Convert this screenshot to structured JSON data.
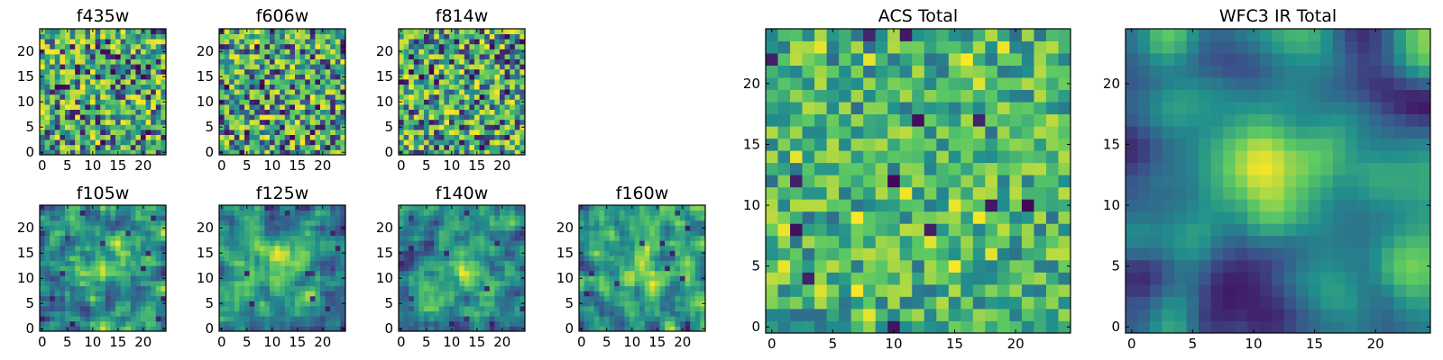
{
  "figure": {
    "colormap": "viridis",
    "colormap_stops": [
      "#440154",
      "#3b528b",
      "#21908d",
      "#5dc963",
      "#fde725"
    ],
    "background": "#ffffff"
  },
  "chart_data": [
    {
      "id": "f435w",
      "type": "heatmap",
      "title": "f435w",
      "grid_size": 25,
      "xlim": [
        -0.5,
        24.5
      ],
      "ylim": [
        -0.5,
        24.5
      ],
      "xticks": [
        0,
        5,
        10,
        15,
        20
      ],
      "yticks": [
        0,
        5,
        10,
        15,
        20
      ],
      "texture": "noisy",
      "seed": 11,
      "color_range": [
        0.0,
        1.0
      ],
      "blobs": []
    },
    {
      "id": "f606w",
      "type": "heatmap",
      "title": "f606w",
      "grid_size": 25,
      "xlim": [
        -0.5,
        24.5
      ],
      "ylim": [
        -0.5,
        24.5
      ],
      "xticks": [
        0,
        5,
        10,
        15,
        20
      ],
      "yticks": [
        0,
        5,
        10,
        15,
        20
      ],
      "texture": "noisy",
      "seed": 23,
      "color_range": [
        0.0,
        1.0
      ],
      "blobs": []
    },
    {
      "id": "f814w",
      "type": "heatmap",
      "title": "f814w",
      "grid_size": 25,
      "xlim": [
        -0.5,
        24.5
      ],
      "ylim": [
        -0.5,
        24.5
      ],
      "xticks": [
        0,
        5,
        10,
        15,
        20
      ],
      "yticks": [
        0,
        5,
        10,
        15,
        20
      ],
      "texture": "noisy",
      "seed": 37,
      "color_range": [
        0.0,
        1.0
      ],
      "blobs": []
    },
    {
      "id": "f105w",
      "type": "heatmap",
      "title": "f105w",
      "grid_size": 25,
      "xlim": [
        -0.5,
        24.5
      ],
      "ylim": [
        -0.5,
        24.5
      ],
      "xticks": [
        0,
        5,
        10,
        15,
        20
      ],
      "yticks": [
        0,
        5,
        10,
        15,
        20
      ],
      "texture": "smooth",
      "seed": 41,
      "color_range": [
        0.0,
        1.0
      ],
      "blobs": [
        {
          "x": 13,
          "y": 13,
          "sigma": 4,
          "amp": 0.35
        }
      ]
    },
    {
      "id": "f125w",
      "type": "heatmap",
      "title": "f125w",
      "grid_size": 25,
      "xlim": [
        -0.5,
        24.5
      ],
      "ylim": [
        -0.5,
        24.5
      ],
      "xticks": [
        0,
        5,
        10,
        15,
        20
      ],
      "yticks": [
        0,
        5,
        10,
        15,
        20
      ],
      "texture": "smooth",
      "seed": 53,
      "color_range": [
        0.0,
        1.0
      ],
      "blobs": [
        {
          "x": 12,
          "y": 13,
          "sigma": 4,
          "amp": 0.4
        }
      ]
    },
    {
      "id": "f140w",
      "type": "heatmap",
      "title": "f140w",
      "grid_size": 25,
      "xlim": [
        -0.5,
        24.5
      ],
      "ylim": [
        -0.5,
        24.5
      ],
      "xticks": [
        0,
        5,
        10,
        15,
        20
      ],
      "yticks": [
        0,
        5,
        10,
        15,
        20
      ],
      "texture": "smooth",
      "seed": 67,
      "color_range": [
        0.0,
        1.0
      ],
      "blobs": [
        {
          "x": 12,
          "y": 12,
          "sigma": 4,
          "amp": 0.35
        }
      ]
    },
    {
      "id": "f160w",
      "type": "heatmap",
      "title": "f160w",
      "grid_size": 25,
      "xlim": [
        -0.5,
        24.5
      ],
      "ylim": [
        -0.5,
        24.5
      ],
      "xticks": [
        0,
        5,
        10,
        15,
        20
      ],
      "yticks": [
        0,
        5,
        10,
        15,
        20
      ],
      "texture": "smooth",
      "seed": 79,
      "color_range": [
        0.0,
        1.0
      ],
      "blobs": [
        {
          "x": 12,
          "y": 12,
          "sigma": 4,
          "amp": 0.35
        }
      ]
    },
    {
      "id": "acs-total",
      "type": "heatmap",
      "title": "ACS Total",
      "grid_size": 25,
      "xlim": [
        -0.5,
        24.5
      ],
      "ylim": [
        -0.5,
        24.5
      ],
      "xticks": [
        0,
        5,
        10,
        15,
        20
      ],
      "yticks": [
        0,
        5,
        10,
        15,
        20
      ],
      "texture": "noisy-mid",
      "seed": 97,
      "color_range": [
        0.0,
        1.0
      ],
      "blobs": []
    },
    {
      "id": "wfc3-ir-total",
      "type": "heatmap",
      "title": "WFC3 IR Total",
      "grid_size": 25,
      "xlim": [
        -0.5,
        24.5
      ],
      "ylim": [
        -0.5,
        24.5
      ],
      "xticks": [
        0,
        5,
        10,
        15,
        20
      ],
      "yticks": [
        0,
        5,
        10,
        15,
        20
      ],
      "texture": "smooth-strong",
      "seed": 113,
      "color_range": [
        0.0,
        1.0
      ],
      "blobs": [
        {
          "x": 11,
          "y": 13,
          "sigma": 3.2,
          "amp": 0.6
        },
        {
          "x": 22,
          "y": 3,
          "sigma": 2.5,
          "amp": 0.35
        },
        {
          "x": 9,
          "y": 2,
          "sigma": 2.5,
          "amp": -0.5
        },
        {
          "x": 1,
          "y": 3,
          "sigma": 2.0,
          "amp": -0.35
        },
        {
          "x": 20,
          "y": 20,
          "sigma": 2.0,
          "amp": -0.3
        }
      ]
    }
  ]
}
